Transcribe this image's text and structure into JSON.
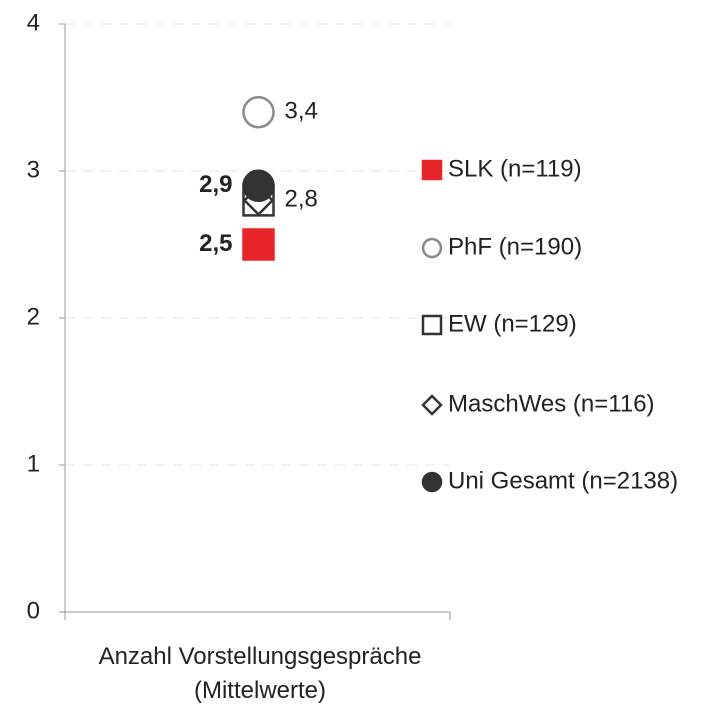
{
  "chart_data": {
    "type": "dot",
    "categories": [
      "Anzahl Vorstellungsgespräche\n(Mittelwerte)"
    ],
    "ylim": [
      0,
      4
    ],
    "yticks": [
      0,
      1,
      2,
      3,
      4
    ],
    "grid": true,
    "legend": "right",
    "series": [
      {
        "name": "SLK (n=119)",
        "color": "#e8262a",
        "marker": "square",
        "filled": true,
        "values": [
          2.5
        ],
        "value_labels": [
          "2,5"
        ],
        "label_side": "left",
        "label_bold": true
      },
      {
        "name": "PhF (n=190)",
        "color": "#8a8a8a",
        "marker": "circle",
        "filled": false,
        "values": [
          3.4
        ],
        "value_labels": [
          "3,4"
        ],
        "label_side": "right",
        "label_bold": false
      },
      {
        "name": "EW (n=129)",
        "color": "#333333",
        "marker": "square",
        "filled": false,
        "values": [
          2.8
        ],
        "value_labels": [
          "2,8"
        ],
        "label_side": "right",
        "label_bold": false
      },
      {
        "name": "MaschWes (n=116)",
        "color": "#333333",
        "marker": "diamond",
        "filled": false,
        "values": [
          2.8
        ]
      },
      {
        "name": "Uni Gesamt (n=2138)",
        "color": "#333333",
        "marker": "circle",
        "filled": true,
        "values": [
          2.9
        ],
        "value_labels": [
          "2,9"
        ],
        "label_side": "left",
        "label_bold": true
      }
    ]
  }
}
